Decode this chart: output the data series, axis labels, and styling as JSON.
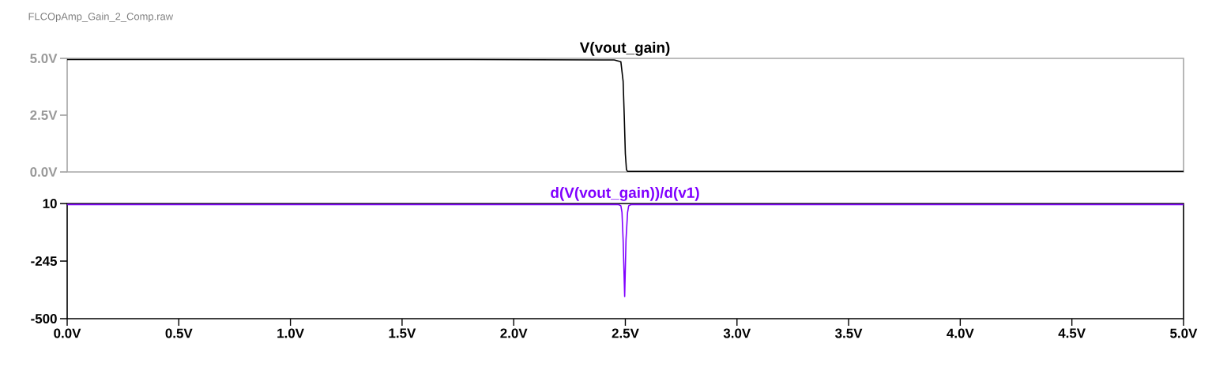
{
  "chart_data": [
    {
      "type": "line",
      "annotations": [
        "FLCOpAmp_Gain_2_Comp.raw"
      ],
      "tick_labels": "y",
      "xlim": [
        0,
        5
      ],
      "ylim": [
        0,
        5
      ],
      "yticks": [
        {
          "value": 0,
          "label": "0.0V"
        },
        {
          "value": 2.5,
          "label": "2.5V"
        },
        {
          "value": 5,
          "label": "5.0V"
        }
      ],
      "series": [
        {
          "name": "V(vout_gain)",
          "color": "#000000",
          "x": [
            0,
            1.8,
            2.45,
            2.48,
            2.49,
            2.495,
            2.5,
            2.505,
            2.51,
            5
          ],
          "values": [
            4.95,
            4.95,
            4.93,
            4.85,
            4.0,
            2.5,
            0.8,
            0.1,
            0.02,
            0.02
          ]
        }
      ]
    },
    {
      "type": "line",
      "xlim": [
        0,
        5
      ],
      "ylim": [
        -500,
        10
      ],
      "xticks": [
        {
          "value": 0,
          "label": "0.0V"
        },
        {
          "value": 0.5,
          "label": "0.5V"
        },
        {
          "value": 1,
          "label": "1.0V"
        },
        {
          "value": 1.5,
          "label": "1.5V"
        },
        {
          "value": 2,
          "label": "2.0V"
        },
        {
          "value": 2.5,
          "label": "2.5V"
        },
        {
          "value": 3,
          "label": "3.0V"
        },
        {
          "value": 3.5,
          "label": "3.5V"
        },
        {
          "value": 4,
          "label": "4.0V"
        },
        {
          "value": 4.5,
          "label": "4.5V"
        },
        {
          "value": 5,
          "label": "5.0V"
        }
      ],
      "yticks": [
        -500,
        -245,
        10
      ],
      "series": [
        {
          "name": "d(V(vout_gain))/d(v1)",
          "color": "#8000ff",
          "x": [
            0,
            2.47,
            2.48,
            2.485,
            2.49,
            2.497,
            2.503,
            2.51,
            2.515,
            2.525,
            5
          ],
          "values": [
            5,
            5,
            0,
            -30,
            -150,
            -402,
            -150,
            -30,
            0,
            5,
            5
          ]
        }
      ]
    }
  ]
}
